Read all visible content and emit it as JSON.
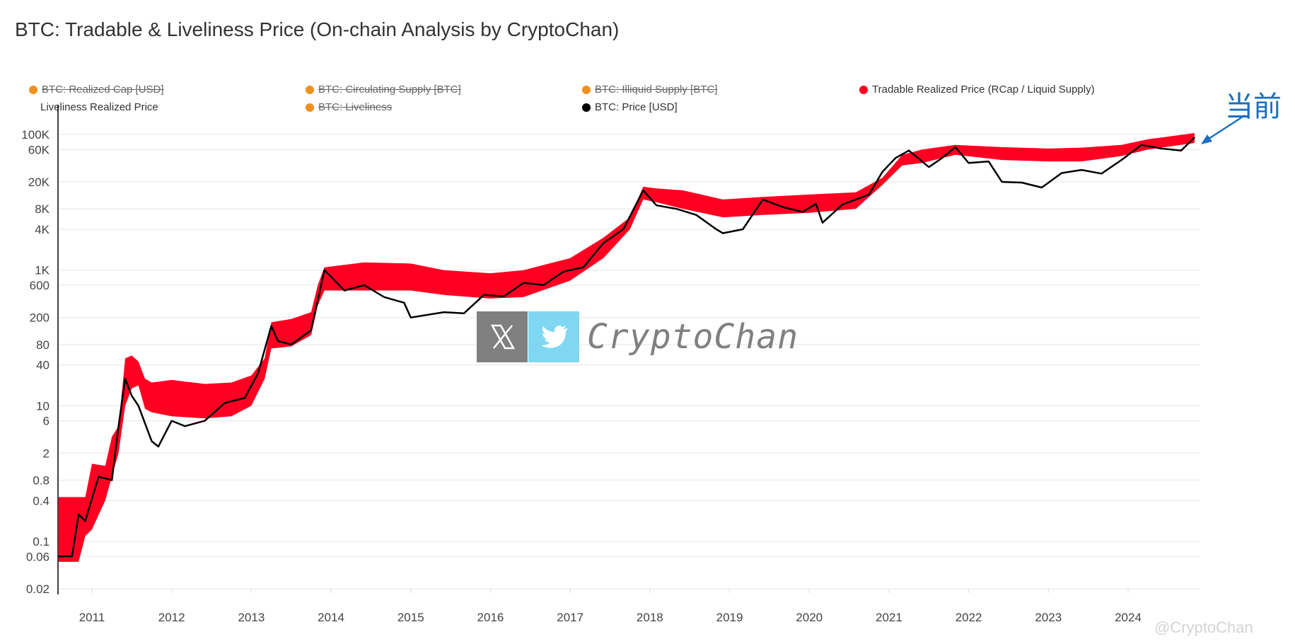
{
  "title": "BTC: Tradable & Liveliness Price (On-chain Analysis by CryptoChan)",
  "legend": [
    {
      "label": "BTC: Realized Cap [USD]",
      "color": "#f0901e",
      "hidden": true
    },
    {
      "label": "BTC: Circulating Supply [BTC]",
      "color": "#f0901e",
      "hidden": true
    },
    {
      "label": "BTC: Illiquid Supply [BTC]",
      "color": "#f0901e",
      "hidden": true
    },
    {
      "label": "Tradable Realized Price (RCap / Liquid Supply)",
      "color": "#ff0022",
      "hidden": false
    },
    {
      "label": "Liveliness Realized Price",
      "color": "",
      "hidden": false
    },
    {
      "label": "BTC: Liveliness",
      "color": "#f0901e",
      "hidden": true
    },
    {
      "label": "BTC: Price [USD]",
      "color": "#000000",
      "hidden": false
    }
  ],
  "annotation": {
    "text": "当前",
    "color": "#1a6fc0"
  },
  "watermark": {
    "text": "CryptoChan",
    "handle": "@CryptoChan",
    "icons": [
      "x-logo-icon",
      "twitter-bird-icon"
    ]
  },
  "chart_data": {
    "type": "area",
    "title": "BTC: Tradable & Liveliness Price (On-chain Analysis by CryptoChan)",
    "xlabel": "",
    "ylabel": "",
    "yscale": "log",
    "ylim": [
      0.02,
      100000
    ],
    "xlim": [
      "2010-08",
      "2024-11"
    ],
    "grid": true,
    "legend_position": "top",
    "y_ticks": [
      "100K",
      "60K",
      "20K",
      "8K",
      "4K",
      "1K",
      "600",
      "200",
      "80",
      "40",
      "10",
      "6",
      "2",
      "0.8",
      "0.4",
      "0.1",
      "0.06",
      "0.02"
    ],
    "y_tick_values": [
      100000,
      60000,
      20000,
      8000,
      4000,
      1000,
      600,
      200,
      80,
      40,
      10,
      6,
      2,
      0.8,
      0.4,
      0.1,
      0.06,
      0.02
    ],
    "x_ticks": [
      "2011",
      "2012",
      "2013",
      "2014",
      "2015",
      "2016",
      "2017",
      "2018",
      "2019",
      "2020",
      "2021",
      "2022",
      "2023",
      "2024"
    ],
    "series": [
      {
        "name": "Tradable Realized Price (RCap / Liquid Supply)",
        "color": "#ff0022",
        "kind": "band",
        "points": [
          [
            "2010-08",
            0.05,
            0.45
          ],
          [
            "2010-11",
            0.05,
            0.45
          ],
          [
            "2010-12",
            0.12,
            0.45
          ],
          [
            "2011-01",
            0.15,
            1.4
          ],
          [
            "2011-03",
            0.4,
            1.3
          ],
          [
            "2011-04",
            0.9,
            3.5
          ],
          [
            "2011-05",
            2,
            5
          ],
          [
            "2011-06",
            10,
            50
          ],
          [
            "2011-07",
            18,
            55
          ],
          [
            "2011-08",
            20,
            45
          ],
          [
            "2011-09",
            9,
            25
          ],
          [
            "2011-10",
            8,
            22
          ],
          [
            "2012-01",
            7,
            24
          ],
          [
            "2012-06",
            6.5,
            21
          ],
          [
            "2012-10",
            7,
            22
          ],
          [
            "2013-01",
            10,
            28
          ],
          [
            "2013-03",
            25,
            50
          ],
          [
            "2013-04",
            70,
            170
          ],
          [
            "2013-07",
            75,
            190
          ],
          [
            "2013-10",
            110,
            240
          ],
          [
            "2013-11",
            300,
            600
          ],
          [
            "2013-12",
            500,
            1100
          ],
          [
            "2014-06",
            500,
            1300
          ],
          [
            "2015-01",
            500,
            1250
          ],
          [
            "2015-06",
            430,
            1000
          ],
          [
            "2016-01",
            380,
            900
          ],
          [
            "2016-06",
            400,
            1000
          ],
          [
            "2017-01",
            700,
            1500
          ],
          [
            "2017-06",
            1500,
            3000
          ],
          [
            "2017-10",
            4000,
            6000
          ],
          [
            "2017-12",
            11000,
            17000
          ],
          [
            "2018-02",
            10000,
            16000
          ],
          [
            "2018-06",
            8000,
            15000
          ],
          [
            "2018-12",
            6000,
            11000
          ],
          [
            "2019-06",
            6500,
            12000
          ],
          [
            "2020-01",
            7000,
            13000
          ],
          [
            "2020-08",
            8000,
            14000
          ],
          [
            "2020-12",
            18000,
            23000
          ],
          [
            "2021-03",
            35000,
            50000
          ],
          [
            "2021-06",
            38000,
            60000
          ],
          [
            "2021-11",
            50000,
            70000
          ],
          [
            "2022-06",
            42000,
            65000
          ],
          [
            "2023-01",
            40000,
            62000
          ],
          [
            "2023-06",
            40000,
            64000
          ],
          [
            "2023-12",
            48000,
            70000
          ],
          [
            "2024-04",
            60000,
            85000
          ],
          [
            "2024-11",
            75000,
            105000
          ]
        ]
      },
      {
        "name": "BTC: Price [USD]",
        "color": "#000000",
        "kind": "line",
        "points": [
          [
            "2010-08",
            0.06
          ],
          [
            "2010-10",
            0.06
          ],
          [
            "2010-11",
            0.25
          ],
          [
            "2010-12",
            0.2
          ],
          [
            "2011-02",
            0.9
          ],
          [
            "2011-04",
            0.8
          ],
          [
            "2011-05",
            5
          ],
          [
            "2011-06",
            25
          ],
          [
            "2011-07",
            14
          ],
          [
            "2011-08",
            10
          ],
          [
            "2011-10",
            3
          ],
          [
            "2011-11",
            2.5
          ],
          [
            "2012-01",
            6
          ],
          [
            "2012-03",
            5
          ],
          [
            "2012-06",
            6
          ],
          [
            "2012-09",
            11
          ],
          [
            "2012-12",
            13
          ],
          [
            "2013-02",
            30
          ],
          [
            "2013-04",
            150
          ],
          [
            "2013-05",
            90
          ],
          [
            "2013-07",
            80
          ],
          [
            "2013-10",
            130
          ],
          [
            "2013-12",
            1000
          ],
          [
            "2014-01",
            800
          ],
          [
            "2014-03",
            500
          ],
          [
            "2014-06",
            600
          ],
          [
            "2014-09",
            400
          ],
          [
            "2014-12",
            330
          ],
          [
            "2015-01",
            200
          ],
          [
            "2015-06",
            240
          ],
          [
            "2015-09",
            230
          ],
          [
            "2015-12",
            430
          ],
          [
            "2016-03",
            410
          ],
          [
            "2016-06",
            650
          ],
          [
            "2016-09",
            600
          ],
          [
            "2016-12",
            950
          ],
          [
            "2017-03",
            1100
          ],
          [
            "2017-06",
            2500
          ],
          [
            "2017-09",
            4000
          ],
          [
            "2017-12",
            15000
          ],
          [
            "2018-02",
            9000
          ],
          [
            "2018-05",
            8000
          ],
          [
            "2018-08",
            6500
          ],
          [
            "2018-11",
            4000
          ],
          [
            "2018-12",
            3500
          ],
          [
            "2019-03",
            4000
          ],
          [
            "2019-06",
            11000
          ],
          [
            "2019-09",
            8500
          ],
          [
            "2019-12",
            7200
          ],
          [
            "2020-02",
            9500
          ],
          [
            "2020-03",
            5000
          ],
          [
            "2020-06",
            9300
          ],
          [
            "2020-10",
            13000
          ],
          [
            "2020-12",
            28000
          ],
          [
            "2021-02",
            45000
          ],
          [
            "2021-04",
            58000
          ],
          [
            "2021-07",
            33000
          ],
          [
            "2021-09",
            45000
          ],
          [
            "2021-11",
            65000
          ],
          [
            "2022-01",
            38000
          ],
          [
            "2022-04",
            40000
          ],
          [
            "2022-06",
            20000
          ],
          [
            "2022-09",
            19500
          ],
          [
            "2022-12",
            16500
          ],
          [
            "2023-03",
            27000
          ],
          [
            "2023-06",
            30000
          ],
          [
            "2023-09",
            26500
          ],
          [
            "2023-12",
            42000
          ],
          [
            "2024-03",
            70000
          ],
          [
            "2024-06",
            62000
          ],
          [
            "2024-09",
            58000
          ],
          [
            "2024-11",
            90000
          ]
        ]
      }
    ]
  }
}
